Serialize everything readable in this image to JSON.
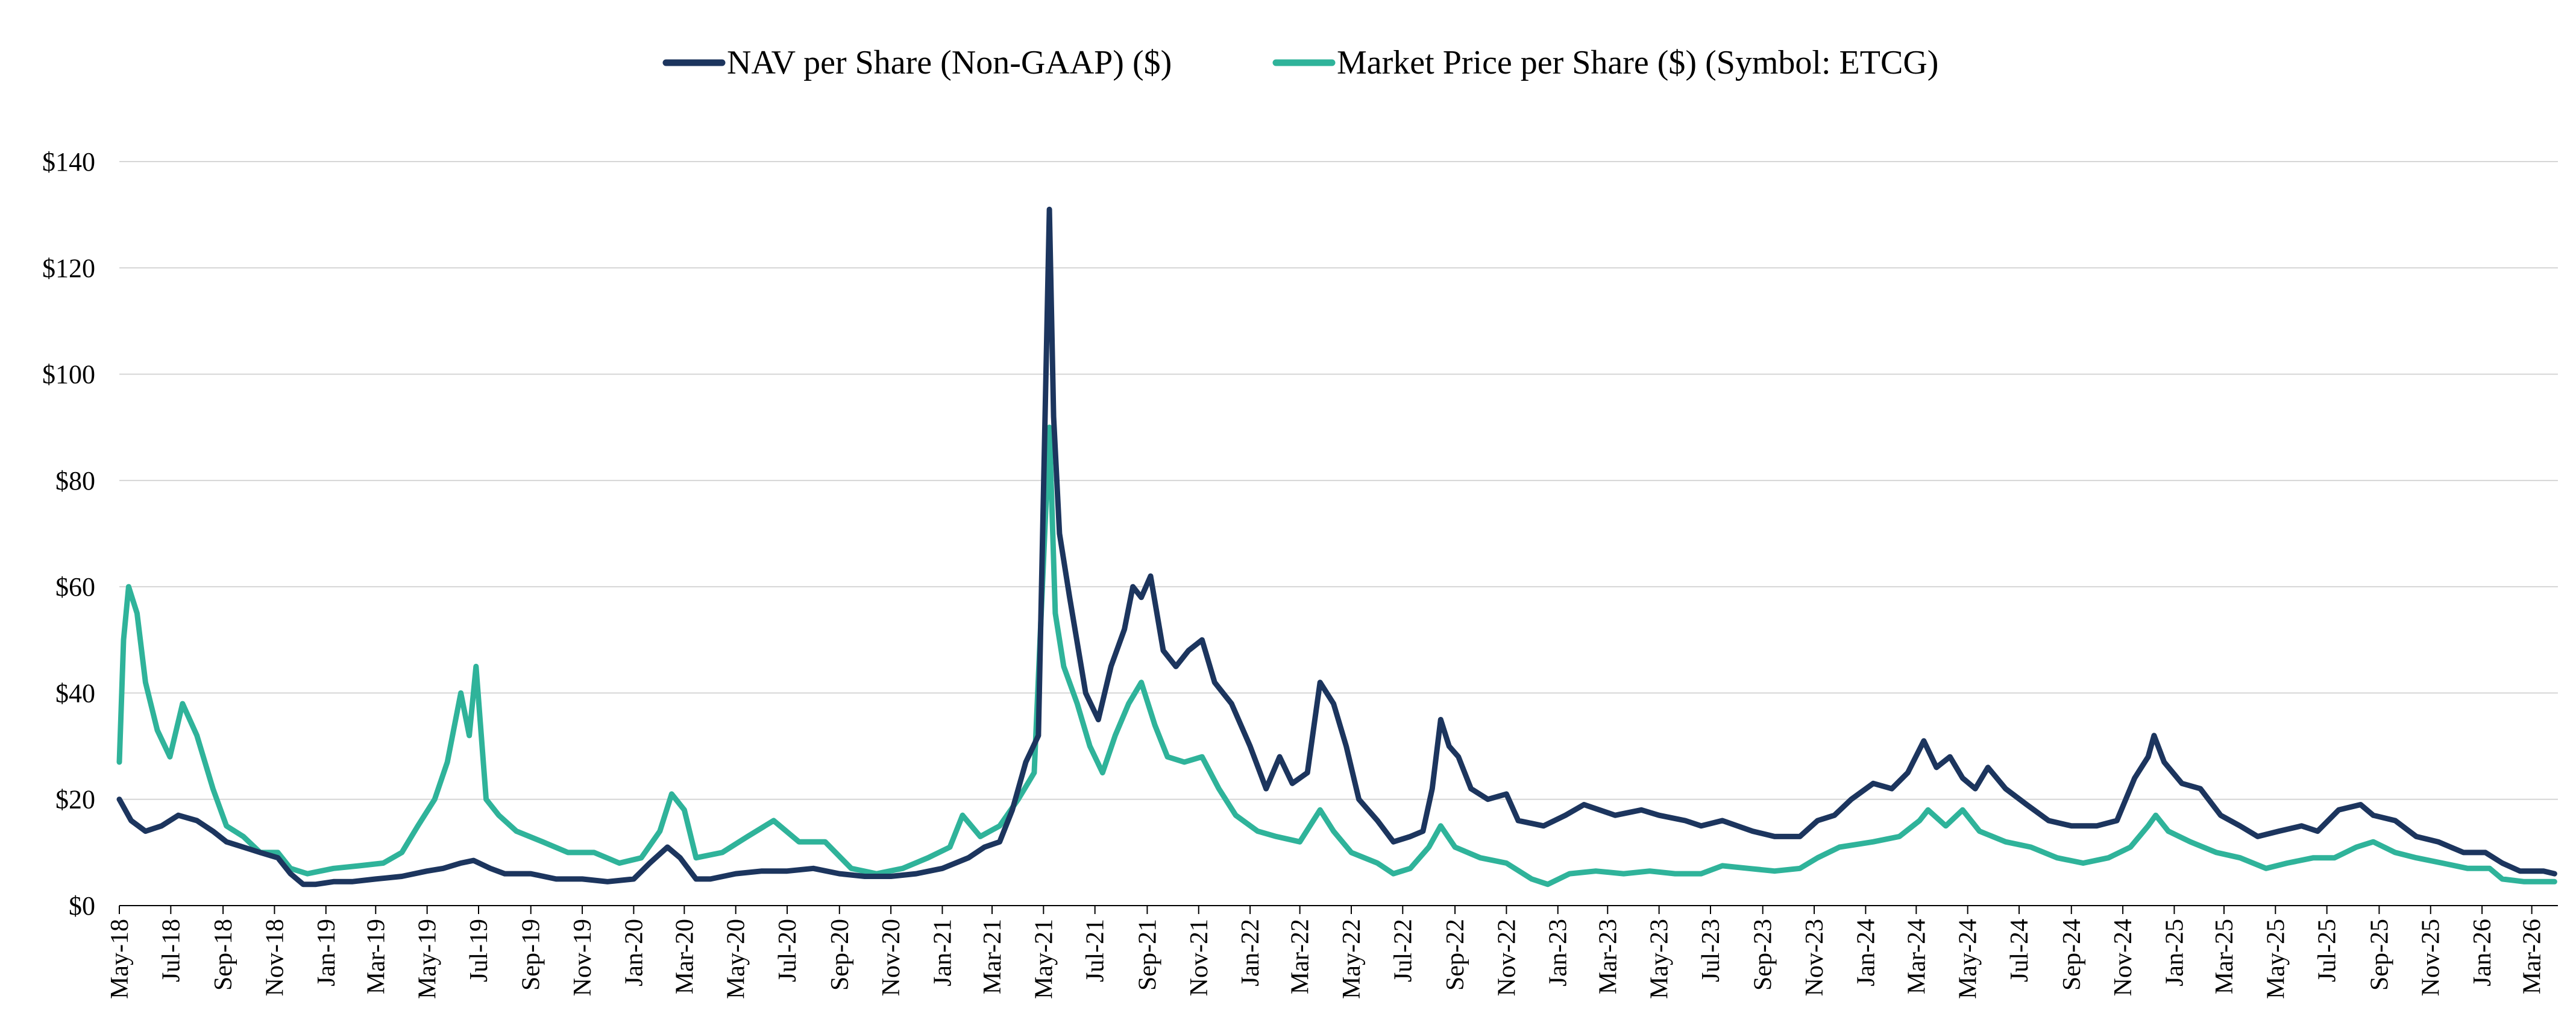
{
  "chart_data": {
    "type": "line",
    "title": "",
    "xlabel": "",
    "ylabel": "",
    "ylim": [
      0,
      140
    ],
    "y_ticks": [
      "$0",
      "$20",
      "$40",
      "$60",
      "$80",
      "$100",
      "$120",
      "$140"
    ],
    "y_tick_values": [
      0,
      20,
      40,
      60,
      80,
      100,
      120,
      140
    ],
    "x_range": [
      "2018-05",
      "2026-03"
    ],
    "x_ticks": [
      "May-18",
      "Jul-18",
      "Sep-18",
      "Nov-18",
      "Jan-19",
      "Mar-19",
      "May-19",
      "Jul-19",
      "Sep-19",
      "Nov-19",
      "Jan-20",
      "Mar-20",
      "May-20",
      "Jul-20",
      "Sep-20",
      "Nov-20",
      "Jan-21",
      "Mar-21",
      "May-21",
      "Jul-21",
      "Sep-21",
      "Nov-21",
      "Jan-22",
      "Mar-22",
      "May-22",
      "Jul-22",
      "Sep-22",
      "Nov-22",
      "Jan-23",
      "Mar-23",
      "May-23",
      "Jul-23",
      "Sep-23",
      "Nov-23",
      "Jan-24",
      "Mar-24",
      "May-24",
      "Jul-24",
      "Sep-24",
      "Nov-24",
      "Jan-25",
      "Mar-25",
      "May-25",
      "Jul-25",
      "Sep-25",
      "Nov-25",
      "Jan-26",
      "Mar-26"
    ],
    "grid": "horizontal",
    "legend_position": "top-center",
    "series": [
      {
        "name": "NAV per Share (Non-GAAP) ($)",
        "color": "#1c355e",
        "points": [
          [
            "2018-05-01",
            20
          ],
          [
            "2018-05-15",
            16
          ],
          [
            "2018-06-01",
            14
          ],
          [
            "2018-06-20",
            15
          ],
          [
            "2018-07-10",
            17
          ],
          [
            "2018-08-01",
            16
          ],
          [
            "2018-08-20",
            14
          ],
          [
            "2018-09-05",
            12
          ],
          [
            "2018-09-25",
            11
          ],
          [
            "2018-10-15",
            10
          ],
          [
            "2018-11-05",
            9
          ],
          [
            "2018-11-20",
            6
          ],
          [
            "2018-12-05",
            4
          ],
          [
            "2018-12-20",
            4
          ],
          [
            "2019-01-10",
            4.5
          ],
          [
            "2019-02-01",
            4.5
          ],
          [
            "2019-03-01",
            5
          ],
          [
            "2019-04-01",
            5.5
          ],
          [
            "2019-05-01",
            6.5
          ],
          [
            "2019-05-20",
            7
          ],
          [
            "2019-06-10",
            8
          ],
          [
            "2019-06-25",
            8.5
          ],
          [
            "2019-07-15",
            7
          ],
          [
            "2019-08-01",
            6
          ],
          [
            "2019-09-01",
            6
          ],
          [
            "2019-10-01",
            5
          ],
          [
            "2019-11-01",
            5
          ],
          [
            "2019-12-01",
            4.5
          ],
          [
            "2020-01-01",
            5
          ],
          [
            "2020-01-20",
            8
          ],
          [
            "2020-02-10",
            11
          ],
          [
            "2020-02-25",
            9
          ],
          [
            "2020-03-15",
            5
          ],
          [
            "2020-04-01",
            5
          ],
          [
            "2020-05-01",
            6
          ],
          [
            "2020-06-01",
            6.5
          ],
          [
            "2020-07-01",
            6.5
          ],
          [
            "2020-08-01",
            7
          ],
          [
            "2020-09-01",
            6
          ],
          [
            "2020-10-01",
            5.5
          ],
          [
            "2020-11-01",
            5.5
          ],
          [
            "2020-12-01",
            6
          ],
          [
            "2021-01-01",
            7
          ],
          [
            "2021-02-01",
            9
          ],
          [
            "2021-02-20",
            11
          ],
          [
            "2021-03-10",
            12
          ],
          [
            "2021-03-25",
            18
          ],
          [
            "2021-04-10",
            27
          ],
          [
            "2021-04-25",
            32
          ],
          [
            "2021-05-08",
            131
          ],
          [
            "2021-05-13",
            92
          ],
          [
            "2021-05-20",
            70
          ],
          [
            "2021-06-01",
            58
          ],
          [
            "2021-06-20",
            40
          ],
          [
            "2021-07-05",
            35
          ],
          [
            "2021-07-20",
            45
          ],
          [
            "2021-08-05",
            52
          ],
          [
            "2021-08-15",
            60
          ],
          [
            "2021-08-25",
            58
          ],
          [
            "2021-09-05",
            62
          ],
          [
            "2021-09-20",
            48
          ],
          [
            "2021-10-05",
            45
          ],
          [
            "2021-10-20",
            48
          ],
          [
            "2021-11-05",
            50
          ],
          [
            "2021-11-20",
            42
          ],
          [
            "2021-12-10",
            38
          ],
          [
            "2022-01-01",
            30
          ],
          [
            "2022-01-20",
            22
          ],
          [
            "2022-02-05",
            28
          ],
          [
            "2022-02-20",
            23
          ],
          [
            "2022-03-10",
            25
          ],
          [
            "2022-03-25",
            42
          ],
          [
            "2022-04-10",
            38
          ],
          [
            "2022-04-25",
            30
          ],
          [
            "2022-05-10",
            20
          ],
          [
            "2022-06-01",
            16
          ],
          [
            "2022-06-20",
            12
          ],
          [
            "2022-07-10",
            13
          ],
          [
            "2022-07-25",
            14
          ],
          [
            "2022-08-05",
            22
          ],
          [
            "2022-08-15",
            35
          ],
          [
            "2022-08-25",
            30
          ],
          [
            "2022-09-05",
            28
          ],
          [
            "2022-09-20",
            22
          ],
          [
            "2022-10-10",
            20
          ],
          [
            "2022-11-01",
            21
          ],
          [
            "2022-11-15",
            16
          ],
          [
            "2022-12-15",
            15
          ],
          [
            "2023-01-10",
            17
          ],
          [
            "2023-02-01",
            19
          ],
          [
            "2023-03-10",
            17
          ],
          [
            "2023-04-10",
            18
          ],
          [
            "2023-05-01",
            17
          ],
          [
            "2023-06-01",
            16
          ],
          [
            "2023-06-20",
            15
          ],
          [
            "2023-07-15",
            16
          ],
          [
            "2023-08-20",
            14
          ],
          [
            "2023-09-15",
            13
          ],
          [
            "2023-10-15",
            13
          ],
          [
            "2023-11-05",
            16
          ],
          [
            "2023-11-25",
            17
          ],
          [
            "2023-12-15",
            20
          ],
          [
            "2024-01-10",
            23
          ],
          [
            "2024-02-01",
            22
          ],
          [
            "2024-02-20",
            25
          ],
          [
            "2024-03-10",
            31
          ],
          [
            "2024-03-25",
            26
          ],
          [
            "2024-04-10",
            28
          ],
          [
            "2024-04-25",
            24
          ],
          [
            "2024-05-10",
            22
          ],
          [
            "2024-05-25",
            26
          ],
          [
            "2024-06-15",
            22
          ],
          [
            "2024-07-10",
            19
          ],
          [
            "2024-08-05",
            16
          ],
          [
            "2024-09-01",
            15
          ],
          [
            "2024-10-01",
            15
          ],
          [
            "2024-10-25",
            16
          ],
          [
            "2024-11-15",
            24
          ],
          [
            "2024-12-01",
            28
          ],
          [
            "2024-12-08",
            32
          ],
          [
            "2024-12-20",
            27
          ],
          [
            "2025-01-10",
            23
          ],
          [
            "2025-02-01",
            22
          ],
          [
            "2025-02-25",
            17
          ],
          [
            "2025-03-20",
            15
          ],
          [
            "2025-04-10",
            13
          ],
          [
            "2025-05-05",
            14
          ],
          [
            "2025-06-01",
            15
          ],
          [
            "2025-06-20",
            14
          ],
          [
            "2025-07-15",
            18
          ],
          [
            "2025-08-10",
            19
          ],
          [
            "2025-08-25",
            17
          ],
          [
            "2025-09-20",
            16
          ],
          [
            "2025-10-15",
            13
          ],
          [
            "2025-11-10",
            12
          ],
          [
            "2025-12-10",
            10
          ],
          [
            "2026-01-05",
            10
          ],
          [
            "2026-01-25",
            8
          ],
          [
            "2026-02-15",
            6.5
          ],
          [
            "2026-03-15",
            6.5
          ],
          [
            "2026-03-28",
            6
          ]
        ]
      },
      {
        "name": "Market Price per Share ($) (Symbol: ETCG)",
        "color": "#2fb39a",
        "points": [
          [
            "2018-05-01",
            27
          ],
          [
            "2018-05-06",
            50
          ],
          [
            "2018-05-12",
            60
          ],
          [
            "2018-05-22",
            55
          ],
          [
            "2018-06-01",
            42
          ],
          [
            "2018-06-15",
            33
          ],
          [
            "2018-06-30",
            28
          ],
          [
            "2018-07-15",
            38
          ],
          [
            "2018-08-01",
            32
          ],
          [
            "2018-08-20",
            22
          ],
          [
            "2018-09-05",
            15
          ],
          [
            "2018-09-25",
            13
          ],
          [
            "2018-10-15",
            10
          ],
          [
            "2018-11-05",
            10
          ],
          [
            "2018-11-20",
            7
          ],
          [
            "2018-12-10",
            6
          ],
          [
            "2019-01-10",
            7
          ],
          [
            "2019-02-10",
            7.5
          ],
          [
            "2019-03-10",
            8
          ],
          [
            "2019-04-01",
            10
          ],
          [
            "2019-04-20",
            15
          ],
          [
            "2019-05-10",
            20
          ],
          [
            "2019-05-25",
            27
          ],
          [
            "2019-06-10",
            40
          ],
          [
            "2019-06-20",
            32
          ],
          [
            "2019-06-28",
            45
          ],
          [
            "2019-07-10",
            20
          ],
          [
            "2019-07-25",
            17
          ],
          [
            "2019-08-15",
            14
          ],
          [
            "2019-09-15",
            12
          ],
          [
            "2019-10-15",
            10
          ],
          [
            "2019-11-15",
            10
          ],
          [
            "2019-12-15",
            8
          ],
          [
            "2020-01-10",
            9
          ],
          [
            "2020-02-01",
            14
          ],
          [
            "2020-02-15",
            21
          ],
          [
            "2020-03-01",
            18
          ],
          [
            "2020-03-15",
            9
          ],
          [
            "2020-04-15",
            10
          ],
          [
            "2020-05-15",
            13
          ],
          [
            "2020-06-15",
            16
          ],
          [
            "2020-07-15",
            12
          ],
          [
            "2020-08-15",
            12
          ],
          [
            "2020-09-15",
            7
          ],
          [
            "2020-10-15",
            6
          ],
          [
            "2020-11-15",
            7
          ],
          [
            "2020-12-15",
            9
          ],
          [
            "2021-01-10",
            11
          ],
          [
            "2021-01-25",
            17
          ],
          [
            "2021-02-15",
            13
          ],
          [
            "2021-03-10",
            15
          ],
          [
            "2021-04-01",
            20
          ],
          [
            "2021-04-20",
            25
          ],
          [
            "2021-05-08",
            90
          ],
          [
            "2021-05-15",
            55
          ],
          [
            "2021-05-25",
            45
          ],
          [
            "2021-06-10",
            38
          ],
          [
            "2021-06-25",
            30
          ],
          [
            "2021-07-10",
            25
          ],
          [
            "2021-07-25",
            32
          ],
          [
            "2021-08-10",
            38
          ],
          [
            "2021-08-25",
            42
          ],
          [
            "2021-09-10",
            34
          ],
          [
            "2021-09-25",
            28
          ],
          [
            "2021-10-15",
            27
          ],
          [
            "2021-11-05",
            28
          ],
          [
            "2021-11-25",
            22
          ],
          [
            "2021-12-15",
            17
          ],
          [
            "2022-01-10",
            14
          ],
          [
            "2022-02-01",
            13
          ],
          [
            "2022-03-01",
            12
          ],
          [
            "2022-03-25",
            18
          ],
          [
            "2022-04-10",
            14
          ],
          [
            "2022-05-01",
            10
          ],
          [
            "2022-06-01",
            8
          ],
          [
            "2022-06-20",
            6
          ],
          [
            "2022-07-10",
            7
          ],
          [
            "2022-08-01",
            11
          ],
          [
            "2022-08-15",
            15
          ],
          [
            "2022-09-01",
            11
          ],
          [
            "2022-10-01",
            9
          ],
          [
            "2022-11-01",
            8
          ],
          [
            "2022-12-01",
            5
          ],
          [
            "2022-12-20",
            4
          ],
          [
            "2023-01-15",
            6
          ],
          [
            "2023-02-15",
            6.5
          ],
          [
            "2023-03-20",
            6
          ],
          [
            "2023-04-20",
            6.5
          ],
          [
            "2023-05-20",
            6
          ],
          [
            "2023-06-20",
            6
          ],
          [
            "2023-07-15",
            7.5
          ],
          [
            "2023-08-15",
            7
          ],
          [
            "2023-09-15",
            6.5
          ],
          [
            "2023-10-15",
            7
          ],
          [
            "2023-11-05",
            9
          ],
          [
            "2023-12-01",
            11
          ],
          [
            "2024-01-10",
            12
          ],
          [
            "2024-02-10",
            13
          ],
          [
            "2024-03-05",
            16
          ],
          [
            "2024-03-15",
            18
          ],
          [
            "2024-04-05",
            15
          ],
          [
            "2024-04-25",
            18
          ],
          [
            "2024-05-15",
            14
          ],
          [
            "2024-06-15",
            12
          ],
          [
            "2024-07-15",
            11
          ],
          [
            "2024-08-15",
            9
          ],
          [
            "2024-09-15",
            8
          ],
          [
            "2024-10-15",
            9
          ],
          [
            "2024-11-10",
            11
          ],
          [
            "2024-12-01",
            15
          ],
          [
            "2024-12-10",
            17
          ],
          [
            "2024-12-25",
            14
          ],
          [
            "2025-01-20",
            12
          ],
          [
            "2025-02-20",
            10
          ],
          [
            "2025-03-20",
            9
          ],
          [
            "2025-04-20",
            7
          ],
          [
            "2025-05-15",
            8
          ],
          [
            "2025-06-15",
            9
          ],
          [
            "2025-07-10",
            9
          ],
          [
            "2025-08-05",
            11
          ],
          [
            "2025-08-25",
            12
          ],
          [
            "2025-09-20",
            10
          ],
          [
            "2025-10-15",
            9
          ],
          [
            "2025-11-15",
            8
          ],
          [
            "2025-12-15",
            7
          ],
          [
            "2026-01-10",
            7
          ],
          [
            "2026-01-25",
            5
          ],
          [
            "2026-02-20",
            4.5
          ],
          [
            "2026-03-28",
            4.5
          ]
        ]
      }
    ]
  }
}
